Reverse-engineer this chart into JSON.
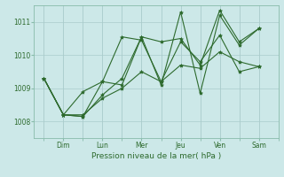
{
  "background_color": "#cce8e8",
  "grid_color": "#aacccc",
  "line_color": "#2d6a2d",
  "xlabel": "Pression niveau de la mer( hPa )",
  "xtick_labels": [
    "Dim",
    "Lun",
    "Mer",
    "Jeu",
    "Ven",
    "Sam"
  ],
  "ylim": [
    1007.5,
    1011.5
  ],
  "yticks": [
    1008,
    1009,
    1010,
    1011
  ],
  "series": [
    [
      1009.3,
      1008.2,
      1008.2,
      1008.7,
      1009.0,
      1009.5,
      1009.2,
      1009.7,
      1009.6,
      1010.1,
      1009.8,
      1009.65
    ],
    [
      1009.3,
      1008.2,
      1008.15,
      1008.8,
      1009.3,
      1010.55,
      1009.1,
      1011.3,
      1008.85,
      1011.2,
      1010.3,
      1010.8
    ],
    [
      1009.3,
      1008.2,
      1008.9,
      1009.2,
      1009.1,
      1010.55,
      1010.4,
      1010.5,
      1009.7,
      1011.35,
      1010.4,
      1010.8
    ],
    [
      1009.3,
      1008.2,
      1008.15,
      1009.2,
      1010.55,
      1010.45,
      1009.2,
      1010.4,
      1009.8,
      1010.6,
      1009.5,
      1009.65
    ]
  ],
  "marker": "*",
  "marker_size": 3,
  "linewidth": 0.8,
  "fig_width": 3.2,
  "fig_height": 2.0,
  "dpi": 100
}
